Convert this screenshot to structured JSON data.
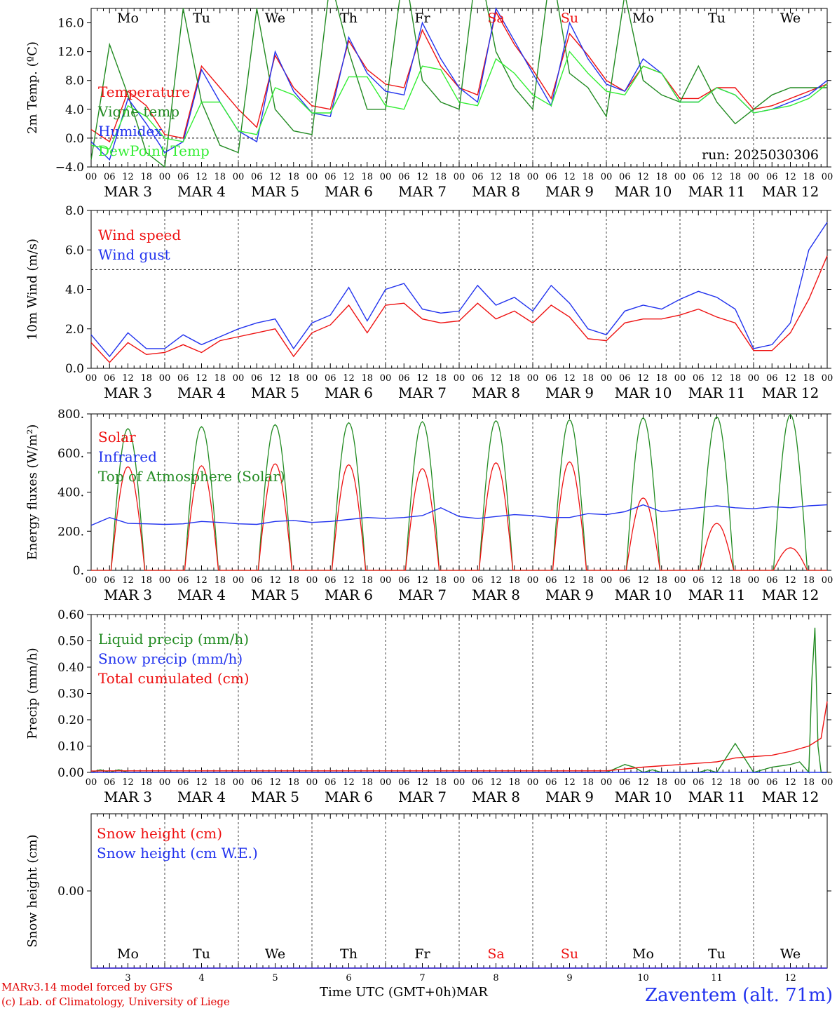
{
  "run_label": "run: 2025030306",
  "day_labels": [
    {
      "name": "Mo",
      "color": "#000000"
    },
    {
      "name": "Tu",
      "color": "#000000"
    },
    {
      "name": "We",
      "color": "#000000"
    },
    {
      "name": "Th",
      "color": "#000000"
    },
    {
      "name": "Fr",
      "color": "#000000"
    },
    {
      "name": "Sa",
      "color": "#ee1111"
    },
    {
      "name": "Su",
      "color": "#ee1111"
    },
    {
      "name": "Mo",
      "color": "#000000"
    },
    {
      "name": "Tu",
      "color": "#000000"
    },
    {
      "name": "We",
      "color": "#000000"
    }
  ],
  "date_labels": [
    "MAR 3",
    "MAR 4",
    "MAR 5",
    "MAR 6",
    "MAR 7",
    "MAR 8",
    "MAR 9",
    "MAR 10",
    "MAR 11",
    "MAR 12"
  ],
  "day_numbers": [
    "3",
    "4",
    "5",
    "6",
    "7",
    "8",
    "9",
    "10",
    "11",
    "12"
  ],
  "hour_labels": [
    "00",
    "06",
    "12",
    "18"
  ],
  "hour_label_end": "00",
  "x_axis_title": "Time UTC (GMT+0h)",
  "x_axis_month": "MAR",
  "footer": {
    "line1": "MARv3.14 model forced by GFS",
    "line2": "(c) Lab. of Climatology, University of Liege",
    "station": "Zaventem (alt. 71m)"
  },
  "colors": {
    "red": "#ee1111",
    "darkgreen": "#228b22",
    "blue": "#2233ee",
    "lightgreen": "#33ee33",
    "grey": "#555555"
  },
  "chart_data": [
    {
      "type": "line",
      "ylabel": "2m Temp. (ºC)",
      "ylim": [
        -4,
        18
      ],
      "yticks": [
        "16.0",
        "12.0",
        "8.0",
        "4.0",
        "0.0",
        "−4.0"
      ],
      "ytick_values": [
        16,
        12,
        8,
        4,
        0,
        -4
      ],
      "reference_line": 0,
      "x_unit": "hours since MAR 3 00 UTC",
      "legend": [
        "Temperature",
        "Vigne temp",
        "Humidex",
        "DewPoint Temp"
      ],
      "series": [
        {
          "name": "Temperature",
          "color": "#ee1111",
          "x": [
            0,
            6,
            12,
            18,
            24,
            30,
            36,
            42,
            48,
            54,
            60,
            66,
            72,
            78,
            84,
            90,
            96,
            102,
            108,
            114,
            120,
            126,
            132,
            138,
            144,
            150,
            156,
            162,
            168,
            174,
            180,
            186,
            192,
            198,
            204,
            210,
            216,
            222,
            228,
            234,
            240
          ],
          "values": [
            1.2,
            -0.5,
            6.5,
            4.5,
            0.5,
            0,
            10,
            7,
            4,
            1.5,
            11.5,
            7,
            4.5,
            4,
            13.5,
            9.5,
            7.5,
            7,
            15,
            10,
            7,
            6,
            17.5,
            13,
            9.5,
            5.5,
            14.5,
            11.5,
            8,
            6.5,
            10,
            9,
            5.5,
            5.5,
            7,
            7,
            4,
            4.5,
            5.5,
            6.5,
            7.5
          ]
        },
        {
          "name": "Vigne temp",
          "color": "#228b22",
          "x": [
            0,
            6,
            12,
            18,
            24,
            30,
            36,
            42,
            48,
            54,
            60,
            66,
            72,
            78,
            84,
            90,
            96,
            102,
            108,
            114,
            120,
            126,
            132,
            138,
            144,
            150,
            156,
            162,
            168,
            174,
            180,
            186,
            192,
            198,
            204,
            210,
            216,
            222,
            228,
            234,
            240
          ],
          "values": [
            -3,
            13,
            6,
            -2,
            -4,
            18,
            5,
            -1,
            -2,
            18,
            4,
            1,
            0.5,
            22,
            12,
            4,
            4,
            24,
            8,
            5,
            4,
            25,
            12,
            7,
            4,
            24,
            9,
            7,
            3,
            20,
            8,
            6,
            5,
            10,
            5,
            2,
            4,
            6,
            7,
            7,
            7
          ]
        },
        {
          "name": "Humidex",
          "color": "#2233ee",
          "x": [
            0,
            6,
            12,
            18,
            24,
            30,
            36,
            42,
            48,
            54,
            60,
            66,
            72,
            78,
            84,
            90,
            96,
            102,
            108,
            114,
            120,
            126,
            132,
            138,
            144,
            150,
            156,
            162,
            168,
            174,
            180,
            186,
            192,
            198,
            204,
            210,
            216,
            222,
            228,
            234,
            240
          ],
          "values": [
            -0.5,
            -3,
            5.5,
            2,
            -2,
            -0.5,
            9.5,
            5,
            1,
            -0.5,
            12,
            6.5,
            3.5,
            3,
            14,
            9,
            6.5,
            6,
            16,
            11,
            7,
            5,
            18,
            13.5,
            9,
            4.5,
            16,
            11,
            7.5,
            6.5,
            11,
            9,
            5,
            5,
            7,
            6,
            3.5,
            4,
            5,
            6,
            8
          ]
        },
        {
          "name": "DewPoint Temp",
          "color": "#33ee33",
          "x": [
            0,
            6,
            12,
            18,
            24,
            30,
            36,
            42,
            48,
            54,
            60,
            66,
            72,
            78,
            84,
            90,
            96,
            102,
            108,
            114,
            120,
            126,
            132,
            138,
            144,
            150,
            156,
            162,
            168,
            174,
            180,
            186,
            192,
            198,
            204,
            210,
            216,
            222,
            228,
            234,
            240
          ],
          "values": [
            -1,
            -1.5,
            4.5,
            3,
            0,
            -0.5,
            5,
            5,
            1,
            0.5,
            7,
            6,
            3.5,
            3.5,
            8.5,
            8.5,
            4.5,
            4,
            10,
            9.5,
            5,
            4.5,
            11,
            9,
            6,
            4.5,
            12,
            9,
            6.5,
            6,
            10,
            9,
            5,
            5,
            7,
            6,
            3.5,
            4,
            4.5,
            5.5,
            7.5
          ]
        }
      ]
    },
    {
      "type": "line",
      "ylabel": "10m Wind (m/s)",
      "ylim": [
        0,
        8
      ],
      "yticks": [
        "8.0",
        "6.0",
        "4.0",
        "2.0",
        "0.0"
      ],
      "ytick_values": [
        8,
        6,
        4,
        2,
        0
      ],
      "reference_line": 5,
      "x_unit": "hours since MAR 3 00 UTC",
      "legend": [
        "Wind speed",
        "Wind gust"
      ],
      "series": [
        {
          "name": "Wind speed",
          "color": "#ee1111",
          "x": [
            0,
            6,
            12,
            18,
            24,
            30,
            36,
            42,
            48,
            54,
            60,
            66,
            72,
            78,
            84,
            90,
            96,
            102,
            108,
            114,
            120,
            126,
            132,
            138,
            144,
            150,
            156,
            162,
            168,
            174,
            180,
            186,
            192,
            198,
            204,
            210,
            216,
            222,
            228,
            234,
            240
          ],
          "values": [
            1.3,
            0.3,
            1.3,
            0.7,
            0.8,
            1.2,
            0.8,
            1.4,
            1.6,
            1.8,
            2.0,
            0.6,
            1.8,
            2.2,
            3.2,
            1.8,
            3.2,
            3.3,
            2.5,
            2.3,
            2.4,
            3.3,
            2.5,
            2.9,
            2.3,
            3.2,
            2.6,
            1.5,
            1.4,
            2.3,
            2.5,
            2.5,
            2.7,
            3.0,
            2.6,
            2.3,
            0.9,
            0.9,
            1.8,
            3.5,
            5.7
          ]
        },
        {
          "name": "Wind gust",
          "color": "#2233ee",
          "x": [
            0,
            6,
            12,
            18,
            24,
            30,
            36,
            42,
            48,
            54,
            60,
            66,
            72,
            78,
            84,
            90,
            96,
            102,
            108,
            114,
            120,
            126,
            132,
            138,
            144,
            150,
            156,
            162,
            168,
            174,
            180,
            186,
            192,
            198,
            204,
            210,
            216,
            222,
            228,
            234,
            240
          ],
          "values": [
            1.7,
            0.6,
            1.8,
            1.0,
            1.0,
            1.7,
            1.2,
            1.6,
            2.0,
            2.3,
            2.5,
            1.0,
            2.3,
            2.7,
            4.1,
            2.4,
            4.0,
            4.3,
            3.0,
            2.8,
            2.9,
            4.2,
            3.2,
            3.6,
            2.9,
            4.2,
            3.3,
            2.0,
            1.7,
            2.9,
            3.2,
            3.0,
            3.5,
            3.9,
            3.6,
            3.0,
            1.0,
            1.2,
            2.3,
            6.0,
            7.4
          ]
        }
      ]
    },
    {
      "type": "line",
      "ylabel": "Energy fluxes (W/m²)",
      "ylim": [
        0,
        800
      ],
      "yticks": [
        "800.",
        "600.",
        "400.",
        "200.",
        "0."
      ],
      "ytick_values": [
        800,
        600,
        400,
        200,
        0
      ],
      "x_unit": "hours since MAR 3 00 UTC",
      "legend": [
        "Solar",
        "Infrared",
        "Top of Atmosphere (Solar)"
      ],
      "daily_toa_peak": [
        725,
        735,
        745,
        755,
        760,
        765,
        770,
        780,
        785,
        795
      ],
      "daily_solar_peak": [
        530,
        535,
        545,
        540,
        520,
        550,
        555,
        370,
        240,
        115
      ],
      "series": [
        {
          "name": "Infrared",
          "color": "#2233ee",
          "x": [
            0,
            6,
            12,
            18,
            24,
            30,
            36,
            42,
            48,
            54,
            60,
            66,
            72,
            78,
            84,
            90,
            96,
            102,
            108,
            114,
            120,
            126,
            132,
            138,
            144,
            150,
            156,
            162,
            168,
            174,
            180,
            186,
            192,
            198,
            204,
            210,
            216,
            222,
            228,
            234,
            240
          ],
          "values": [
            230,
            270,
            240,
            238,
            235,
            238,
            250,
            245,
            238,
            235,
            250,
            255,
            245,
            250,
            260,
            270,
            265,
            270,
            280,
            320,
            275,
            265,
            275,
            285,
            280,
            270,
            270,
            290,
            285,
            300,
            335,
            300,
            310,
            320,
            330,
            320,
            315,
            325,
            320,
            330,
            335
          ]
        }
      ]
    },
    {
      "type": "line",
      "ylabel": "Precip (mm/h)",
      "ylim": [
        0,
        0.6
      ],
      "yticks": [
        "0.60",
        "0.50",
        "0.40",
        "0.30",
        "0.20",
        "0.10",
        "0.00"
      ],
      "ytick_values": [
        0.6,
        0.5,
        0.4,
        0.3,
        0.2,
        0.1,
        0
      ],
      "x_unit": "hours since MAR 3 00 UTC",
      "legend": [
        "Liquid precip (mm/h)",
        "Snow precip (mm/h)",
        "Total cumulated (cm)"
      ],
      "series": [
        {
          "name": "Liquid precip (mm/h)",
          "color": "#228b22",
          "x": [
            0,
            3,
            6,
            9,
            12,
            150,
            168,
            174,
            177,
            180,
            183,
            186,
            192,
            198,
            201,
            204,
            210,
            216,
            222,
            228,
            231,
            234,
            235,
            236,
            237,
            238,
            240
          ],
          "values": [
            0,
            0.01,
            0,
            0.01,
            0,
            0,
            0,
            0.03,
            0.02,
            0,
            0.01,
            0,
            0,
            0,
            0.01,
            0,
            0.11,
            0,
            0.02,
            0.03,
            0.04,
            0,
            0.35,
            0.55,
            0.1,
            0,
            0
          ]
        },
        {
          "name": "Snow precip (mm/h)",
          "color": "#2233ee",
          "x": [
            0,
            240
          ],
          "values": [
            0,
            0
          ]
        },
        {
          "name": "Total cumulated (cm)",
          "color": "#ee1111",
          "x": [
            0,
            6,
            24,
            168,
            180,
            192,
            198,
            204,
            210,
            216,
            222,
            228,
            234,
            238,
            240
          ],
          "values": [
            0.005,
            0.006,
            0.006,
            0.006,
            0.02,
            0.03,
            0.035,
            0.04,
            0.055,
            0.06,
            0.065,
            0.08,
            0.1,
            0.13,
            0.27
          ]
        }
      ]
    },
    {
      "type": "line",
      "ylabel": "Snow height (cm)",
      "ylim": [
        0,
        1
      ],
      "yticks": [
        "0.00"
      ],
      "ytick_values": [
        0.5
      ],
      "x_unit": "hours since MAR 3 00 UTC",
      "legend": [
        "Snow height (cm)",
        "Snow height (cm W.E.)"
      ],
      "series": [
        {
          "name": "Snow height (cm)",
          "color": "#ee1111",
          "x": [
            0,
            240
          ],
          "values": [
            0,
            0
          ]
        },
        {
          "name": "Snow height (cm W.E.)",
          "color": "#2233ee",
          "x": [
            0,
            240
          ],
          "values": [
            0,
            0
          ]
        }
      ]
    }
  ]
}
